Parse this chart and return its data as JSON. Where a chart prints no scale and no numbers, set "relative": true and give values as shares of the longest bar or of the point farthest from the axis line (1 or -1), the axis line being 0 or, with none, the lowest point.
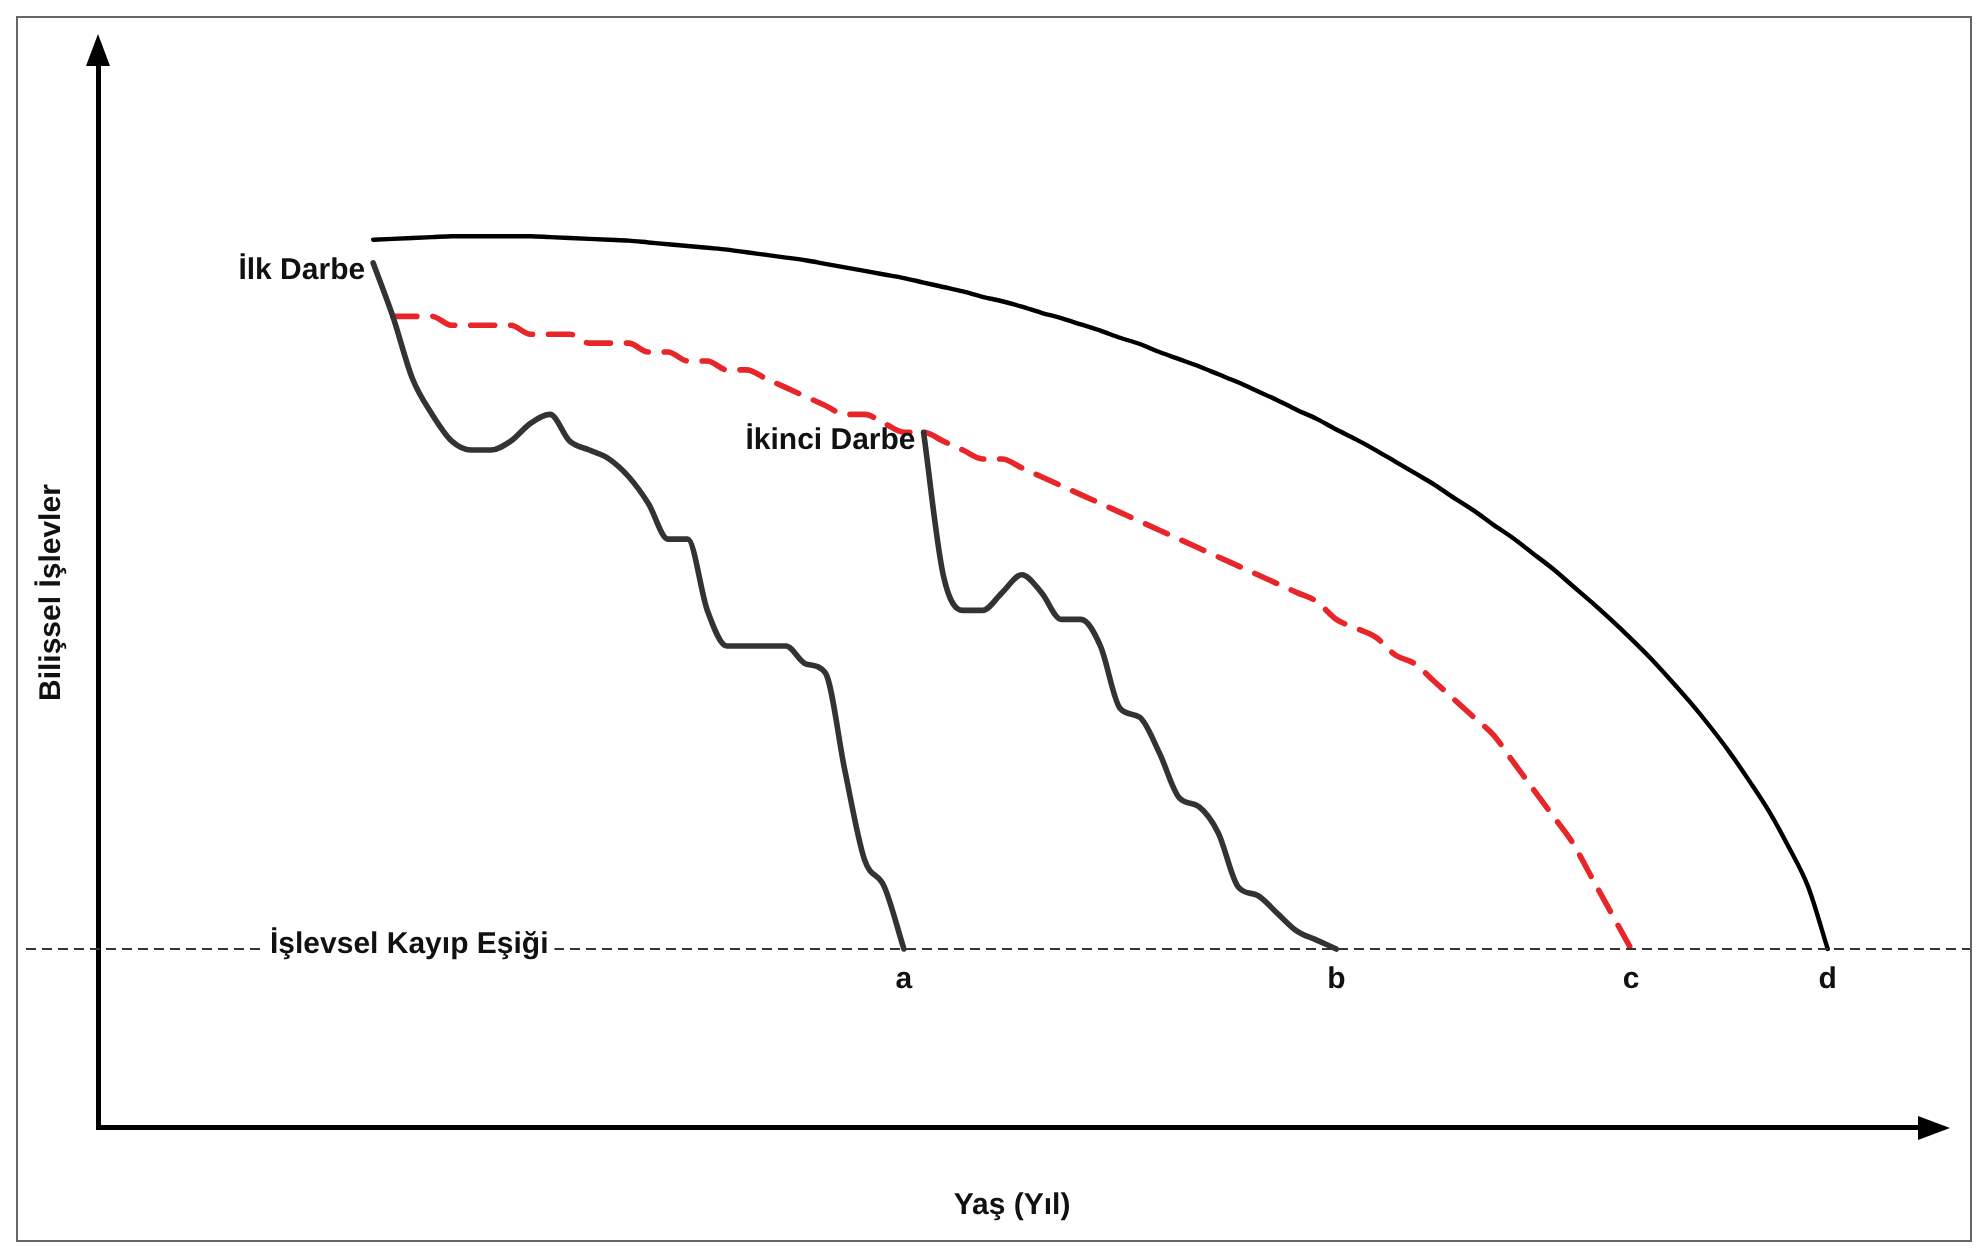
{
  "chart_data": {
    "type": "line",
    "relative": true,
    "xlabel": "Yaş (Yıl)",
    "ylabel": "Bilişsel İşlevler",
    "categories": [
      null,
      null,
      null,
      null,
      null,
      null,
      null,
      null,
      null,
      null,
      null,
      null,
      null,
      null,
      null,
      null,
      null,
      null,
      null,
      null,
      null,
      null,
      null,
      null,
      null,
      null,
      null,
      null,
      null,
      null,
      null,
      null,
      null,
      null,
      null,
      null,
      null,
      null,
      null,
      null,
      null,
      null,
      null,
      null,
      null,
      null,
      null,
      null,
      null,
      null,
      null,
      null,
      null,
      null,
      null,
      null,
      null,
      null,
      null,
      null,
      null,
      null,
      null,
      null,
      null,
      null,
      null,
      null,
      null,
      null,
      null,
      null,
      null,
      null,
      null,
      null,
      null,
      null,
      null,
      null,
      null,
      null,
      null,
      null,
      null,
      null,
      null,
      null,
      null,
      null,
      null,
      null,
      null,
      null
    ],
    "series": [
      {
        "name": "İlk Darbe",
        "color": "#333333",
        "line_style": "solid",
        "values": [
          null,
          null,
          null,
          null,
          null,
          null,
          null,
          null,
          null,
          null,
          null,
          null,
          null,
          null,
          0.97,
          0.91,
          0.84,
          0.8,
          0.77,
          0.76,
          0.76,
          0.77,
          0.79,
          0.8,
          0.77,
          0.76,
          0.75,
          0.73,
          0.7,
          0.66,
          0.66,
          0.58,
          0.54,
          0.54,
          0.54,
          0.54,
          0.52,
          0.51,
          0.4,
          0.3,
          0.27,
          0.2,
          null,
          null,
          null,
          null,
          null,
          null,
          null,
          null,
          null,
          null,
          null,
          null,
          null,
          null,
          null,
          null,
          null,
          null,
          null,
          null,
          null,
          null,
          null,
          null,
          null,
          null,
          null,
          null,
          null,
          null,
          null,
          null,
          null,
          null,
          null,
          null,
          null,
          null,
          null,
          null,
          null,
          null,
          null,
          null,
          null,
          null,
          null,
          null,
          null,
          null,
          null,
          null
        ]
      },
      {
        "name": "İkinci Darbe",
        "color": "#333333",
        "line_style": "solid",
        "values": [
          null,
          null,
          null,
          null,
          null,
          null,
          null,
          null,
          null,
          null,
          null,
          null,
          null,
          null,
          null,
          null,
          null,
          null,
          null,
          null,
          null,
          null,
          null,
          null,
          null,
          null,
          null,
          null,
          null,
          null,
          null,
          null,
          null,
          null,
          null,
          null,
          null,
          null,
          null,
          null,
          null,
          null,
          0.78,
          0.62,
          0.58,
          0.58,
          0.6,
          0.62,
          0.6,
          0.57,
          0.57,
          0.54,
          0.47,
          0.46,
          0.42,
          0.37,
          0.36,
          0.33,
          0.27,
          0.26,
          0.24,
          0.22,
          0.21,
          0.2,
          null,
          null,
          null,
          null,
          null,
          null,
          null,
          null,
          null,
          null,
          null,
          null,
          null,
          null,
          null,
          null,
          null,
          null,
          null,
          null,
          null,
          null,
          null,
          null,
          null,
          null,
          null,
          null,
          null,
          null
        ]
      },
      {
        "color": "#e8262a",
        "line_style": "dashed",
        "values": [
          null,
          null,
          null,
          null,
          null,
          null,
          null,
          null,
          null,
          null,
          null,
          null,
          null,
          null,
          null,
          0.91,
          0.91,
          0.91,
          0.9,
          0.9,
          0.9,
          0.9,
          0.89,
          0.89,
          0.89,
          0.88,
          0.88,
          0.88,
          0.87,
          0.87,
          0.86,
          0.86,
          0.85,
          0.85,
          0.84,
          0.83,
          0.82,
          0.81,
          0.8,
          0.8,
          0.79,
          0.78,
          0.78,
          0.77,
          0.76,
          0.75,
          0.75,
          0.74,
          0.73,
          0.72,
          0.71,
          0.7,
          0.69,
          0.68,
          0.67,
          0.66,
          0.65,
          0.64,
          0.63,
          0.62,
          0.61,
          0.6,
          0.59,
          0.57,
          0.56,
          0.55,
          0.53,
          0.52,
          0.5,
          0.48,
          0.46,
          0.44,
          0.41,
          0.38,
          0.35,
          0.32,
          0.28,
          0.24,
          0.2,
          null,
          null,
          null,
          null,
          null,
          null,
          null,
          null,
          null,
          null,
          null,
          null,
          null,
          null,
          null
        ]
      },
      {
        "color": "#000000",
        "line_style": "solid",
        "values": [
          null,
          null,
          null,
          null,
          null,
          null,
          null,
          null,
          null,
          null,
          null,
          null,
          null,
          null,
          0.996,
          0.997,
          0.998,
          0.999,
          1.0,
          1.0,
          1.0,
          1.0,
          1.0,
          0.999,
          0.998,
          0.997,
          0.996,
          0.995,
          0.993,
          0.991,
          0.989,
          0.987,
          0.985,
          0.982,
          0.979,
          0.976,
          0.973,
          0.969,
          0.965,
          0.961,
          0.957,
          0.953,
          0.948,
          0.943,
          0.938,
          0.932,
          0.927,
          0.921,
          0.914,
          0.908,
          0.901,
          0.894,
          0.886,
          0.879,
          0.87,
          0.862,
          0.854,
          0.845,
          0.836,
          0.826,
          0.816,
          0.805,
          0.795,
          0.783,
          0.772,
          0.76,
          0.747,
          0.734,
          0.721,
          0.706,
          0.692,
          0.676,
          0.661,
          0.644,
          0.627,
          0.608,
          0.589,
          0.569,
          0.548,
          0.526,
          0.502,
          0.477,
          0.45,
          0.421,
          0.389,
          0.355,
          0.315,
          0.27,
          0.2,
          null,
          null,
          null,
          null,
          null
        ]
      }
    ],
    "ref_lines": [
      {
        "axis": "y",
        "value": 0.2,
        "label": "İşlevsel Kayıp Eşiği",
        "color": "#333333",
        "line_style": "dashed"
      }
    ],
    "annotations": [
      "a",
      "b",
      "c",
      "d"
    ],
    "legend": false,
    "grid": false,
    "marker": "none"
  }
}
